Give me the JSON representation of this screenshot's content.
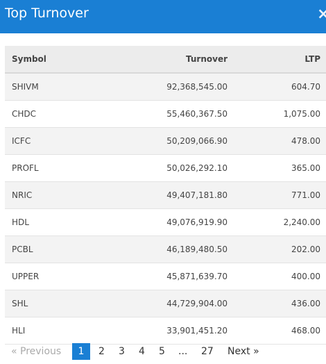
{
  "window": {
    "title": "Top Turnover",
    "close_glyph": "×"
  },
  "table": {
    "headers": {
      "symbol": "Symbol",
      "turnover": "Turnover",
      "ltp": "LTP"
    },
    "rows": [
      {
        "symbol": "SHIVM",
        "turnover": "92,368,545.00",
        "ltp": "604.70"
      },
      {
        "symbol": "CHDC",
        "turnover": "55,460,367.50",
        "ltp": "1,075.00"
      },
      {
        "symbol": "ICFC",
        "turnover": "50,209,066.90",
        "ltp": "478.00"
      },
      {
        "symbol": "PROFL",
        "turnover": "50,026,292.10",
        "ltp": "365.00"
      },
      {
        "symbol": "NRIC",
        "turnover": "49,407,181.80",
        "ltp": "771.00"
      },
      {
        "symbol": "HDL",
        "turnover": "49,076,919.90",
        "ltp": "2,240.00"
      },
      {
        "symbol": "PCBL",
        "turnover": "46,189,480.50",
        "ltp": "202.00"
      },
      {
        "symbol": "UPPER",
        "turnover": "45,871,639.70",
        "ltp": "400.00"
      },
      {
        "symbol": "SHL",
        "turnover": "44,729,904.00",
        "ltp": "436.00"
      },
      {
        "symbol": "HLI",
        "turnover": "33,901,451.20",
        "ltp": "468.00"
      }
    ]
  },
  "pagination": {
    "previous": "« Previous",
    "current": "1",
    "pages": [
      "2",
      "3",
      "4",
      "5"
    ],
    "ellipsis": "...",
    "last": "27",
    "next": "Next »"
  },
  "colors": {
    "header_bg": "#1a7fd4",
    "active_page": "#1a7fd4"
  }
}
